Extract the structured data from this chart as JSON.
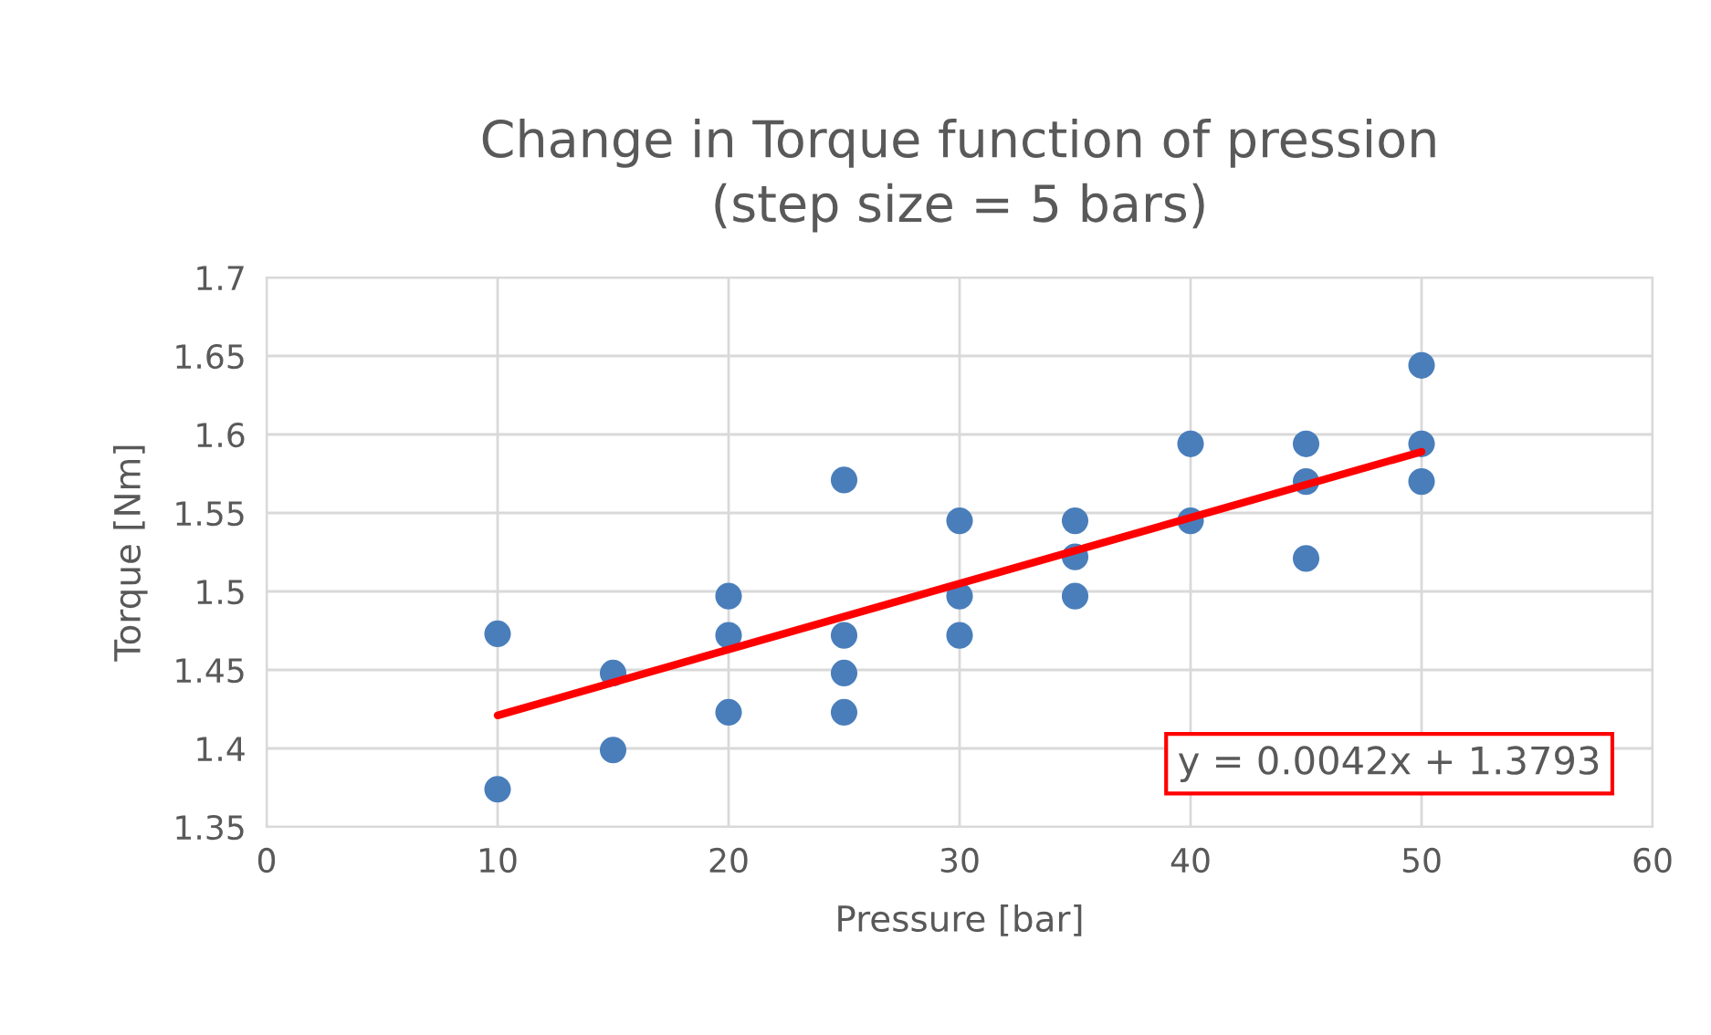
{
  "chart_data": {
    "type": "scatter",
    "title": "Change in Torque function of pression\n(step size = 5 bars)",
    "xlabel": "Pressure [bar]",
    "ylabel": "Torque [Nm]",
    "series": [
      {
        "marker": "circle",
        "color": "#4a7ebb",
        "x": [
          10,
          10,
          15,
          15,
          20,
          20,
          20,
          25,
          25,
          25,
          25,
          30,
          30,
          30,
          35,
          35,
          35,
          40,
          40,
          45,
          45,
          45,
          50,
          50,
          50
        ],
        "values": [
          1.473,
          1.374,
          1.448,
          1.399,
          1.497,
          1.472,
          1.423,
          1.571,
          1.472,
          1.448,
          1.423,
          1.545,
          1.497,
          1.472,
          1.545,
          1.522,
          1.497,
          1.594,
          1.545,
          1.594,
          1.57,
          1.521,
          1.644,
          1.594,
          1.57
        ]
      },
      {
        "type": "line",
        "marker": "none",
        "color": "#ff0000",
        "x": [
          10,
          50
        ],
        "values": [
          1.421,
          1.589
        ]
      }
    ],
    "annotations": [
      "y = 0.0042x + 1.3793"
    ],
    "xlim": [
      0,
      60
    ],
    "xticks": [
      0,
      10,
      20,
      30,
      40,
      50,
      60
    ],
    "ylim": [
      1.35,
      1.7
    ],
    "yticks": [
      1.35,
      1.4,
      1.45,
      1.5,
      1.55,
      1.6,
      1.65,
      1.7
    ],
    "grid": true
  }
}
